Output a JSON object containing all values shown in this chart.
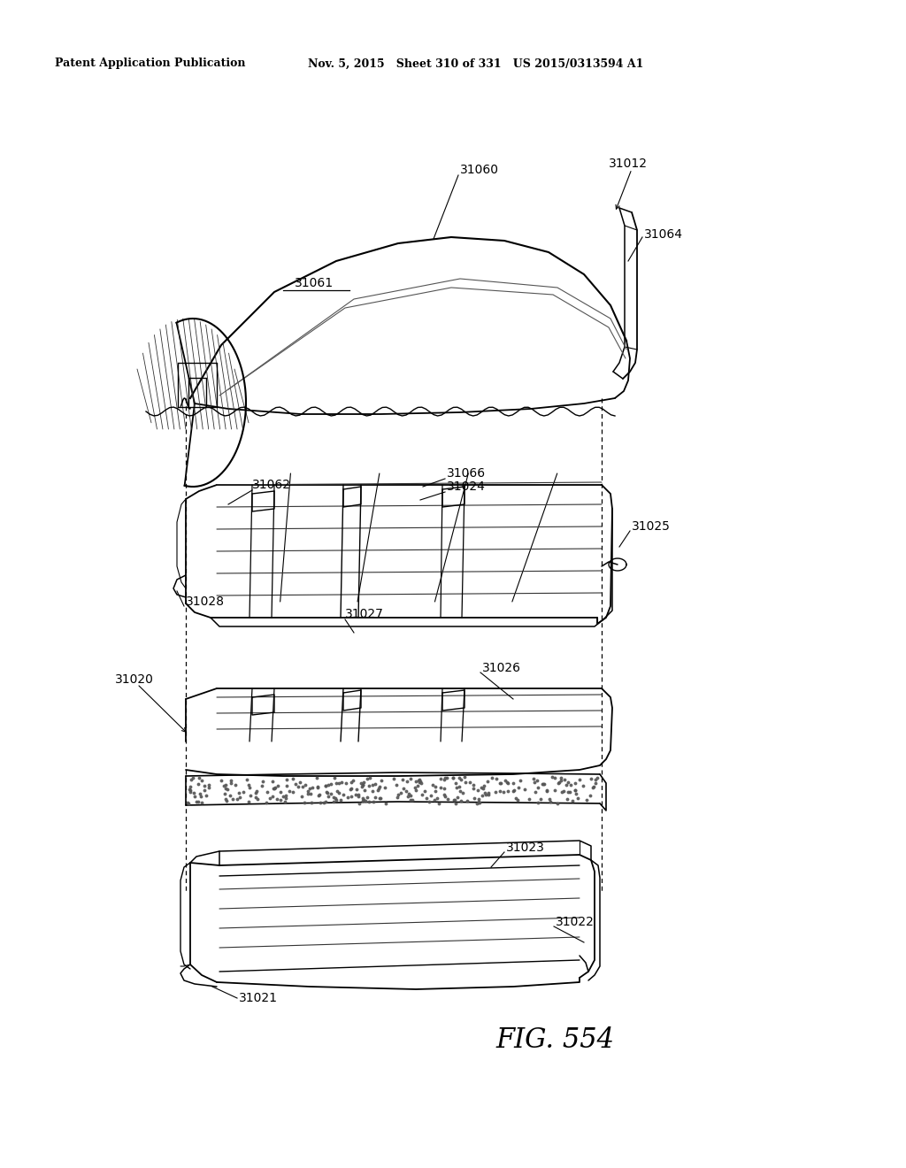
{
  "header_left": "Patent Application Publication",
  "header_mid": "Nov. 5, 2015   Sheet 310 of 331   US 2015/0313594 A1",
  "fig_label": "FIG. 554",
  "background": "#ffffff"
}
